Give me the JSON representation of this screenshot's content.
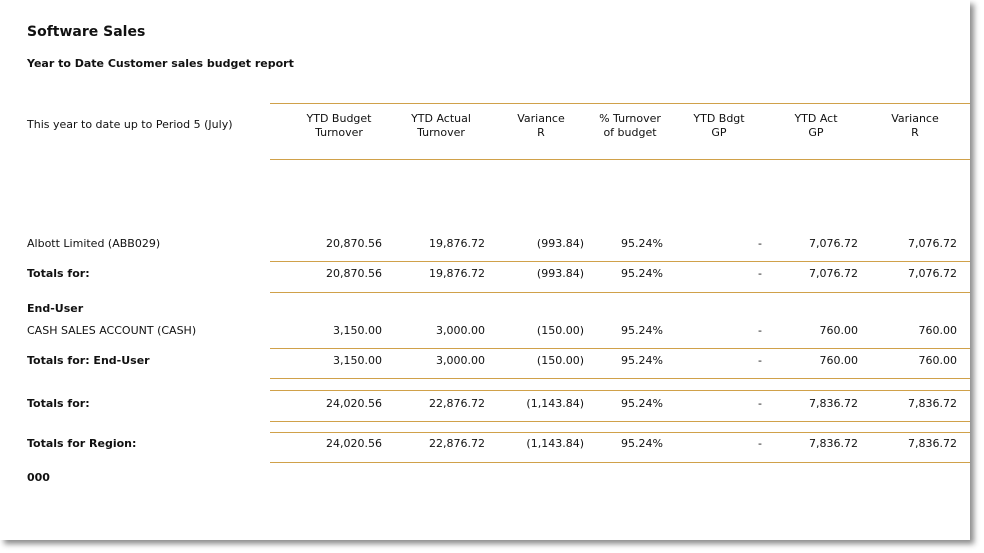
{
  "report": {
    "title": "Software Sales",
    "subtitle": "Year to Date Customer sales budget report",
    "period_label": "This year to date up to Period 5 (July)"
  },
  "columns": [
    {
      "line1": "YTD Budget",
      "line2": "Turnover"
    },
    {
      "line1": "YTD Actual",
      "line2": "Turnover"
    },
    {
      "line1": "Variance",
      "line2": "R"
    },
    {
      "line1": "% Turnover",
      "line2": "of budget"
    },
    {
      "line1": "YTD Bdgt",
      "line2": "GP"
    },
    {
      "line1": "YTD Act",
      "line2": "GP"
    },
    {
      "line1": "Variance",
      "line2": "R"
    }
  ],
  "rows": [
    {
      "label": "Albott Limited (ABB029)",
      "bold": false,
      "values": [
        "20,870.56",
        "19,876.72",
        "(993.84)",
        "95.24%",
        "-",
        "7,076.72",
        "7,076.72"
      ]
    },
    {
      "label": "Totals for:",
      "bold": true,
      "values": [
        "20,870.56",
        "19,876.72",
        "(993.84)",
        "95.24%",
        "-",
        "7,076.72",
        "7,076.72"
      ]
    },
    {
      "label": "End-User",
      "bold": true,
      "values": []
    },
    {
      "label": "CASH SALES ACCOUNT (CASH)",
      "bold": false,
      "values": [
        "3,150.00",
        "3,000.00",
        "(150.00)",
        "95.24%",
        "-",
        "760.00",
        "760.00"
      ]
    },
    {
      "label": "Totals for: End-User",
      "bold": true,
      "values": [
        "3,150.00",
        "3,000.00",
        "(150.00)",
        "95.24%",
        "-",
        "760.00",
        "760.00"
      ]
    },
    {
      "label": "Totals for:",
      "bold": true,
      "values": [
        "24,020.56",
        "22,876.72",
        "(1,143.84)",
        "95.24%",
        "-",
        "7,836.72",
        "7,836.72"
      ]
    },
    {
      "label": "Totals for Region:",
      "bold": true,
      "values": [
        "24,020.56",
        "22,876.72",
        "(1,143.84)",
        "95.24%",
        "-",
        "7,836.72",
        "7,836.72"
      ]
    },
    {
      "label": "000",
      "bold": true,
      "values": []
    }
  ],
  "colors": {
    "rule": "#d0a14a",
    "text": "#111111"
  }
}
